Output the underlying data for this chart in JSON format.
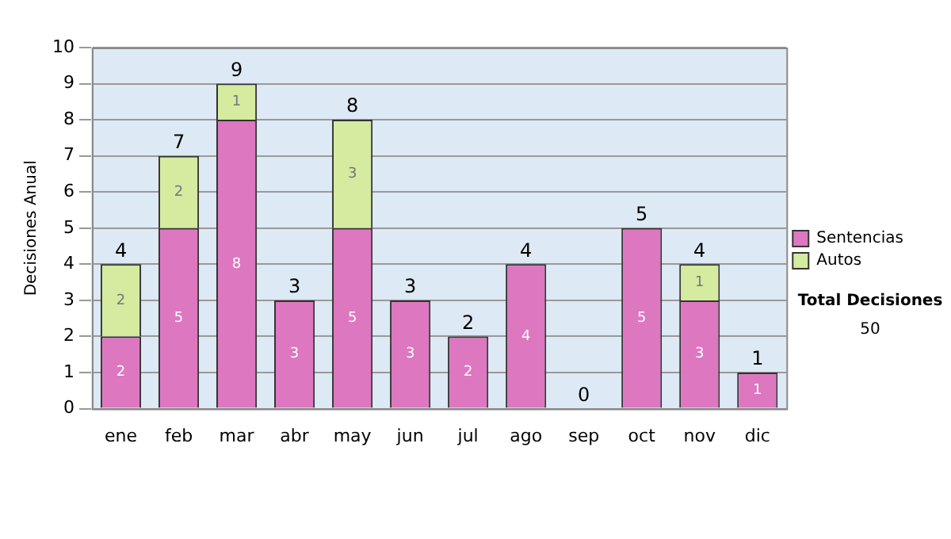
{
  "chart_data": {
    "type": "bar",
    "stacked": true,
    "ylabel": "Decisiones Anual",
    "categories": [
      "ene",
      "feb",
      "mar",
      "abr",
      "may",
      "jun",
      "jul",
      "ago",
      "sep",
      "oct",
      "nov",
      "dic"
    ],
    "series": [
      {
        "name": "Sentencias",
        "color": "#dd77c0",
        "values": [
          2,
          5,
          8,
          3,
          5,
          3,
          2,
          4,
          0,
          5,
          3,
          1
        ],
        "value_labels": [
          "2",
          "5",
          "8",
          "3",
          "5",
          "3",
          "2",
          "4",
          null,
          "5",
          "3",
          "1"
        ]
      },
      {
        "name": "Autos",
        "color": "#d4eba0",
        "values": [
          2,
          2,
          1,
          0,
          3,
          0,
          0,
          0,
          0,
          0,
          1,
          0
        ],
        "value_labels": [
          "2",
          "2",
          "1",
          null,
          "3",
          null,
          null,
          null,
          null,
          null,
          "1",
          null
        ]
      }
    ],
    "totals": [
      "4",
      "7",
      "9",
      "3",
      "8",
      "3",
      "2",
      "4",
      "0",
      "5",
      "4",
      "1"
    ],
    "ylim": [
      0,
      10
    ],
    "yticks": [
      0,
      1,
      2,
      3,
      4,
      5,
      6,
      7,
      8,
      9,
      10
    ],
    "grid": "y",
    "legend": "right",
    "annotations": [
      "Total Decisiones",
      "50"
    ]
  }
}
